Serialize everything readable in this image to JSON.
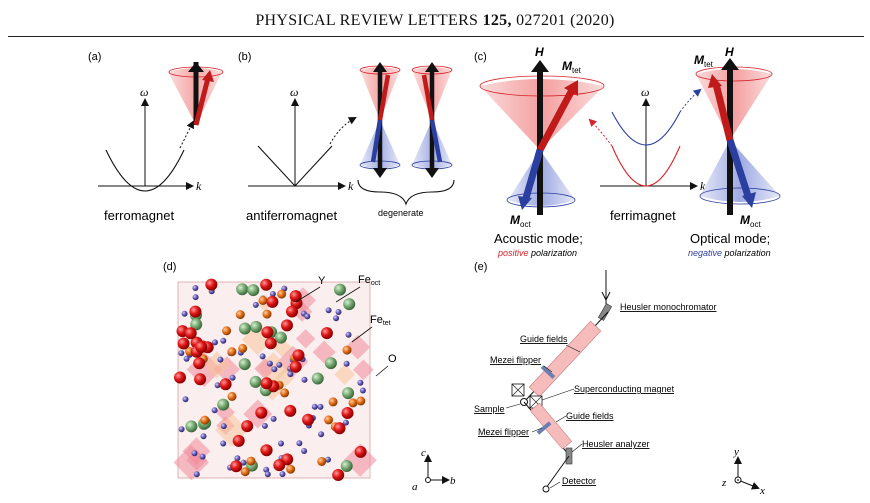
{
  "header": {
    "journal": "PHYSICAL REVIEW LETTERS",
    "volume": "125,",
    "article": "027201 (2020)"
  },
  "panels": {
    "a": {
      "label": "(a)",
      "omega": "ω",
      "k": "k",
      "caption": "ferromagnet"
    },
    "b": {
      "label": "(b)",
      "omega": "ω",
      "k": "k",
      "caption": "antiferromagnet",
      "brace": "degenerate"
    },
    "c": {
      "label": "(c)",
      "omega": "ω",
      "k": "k",
      "caption": "ferrimagnet",
      "H": "H",
      "M": "M",
      "tet": "tet",
      "oct": "oct",
      "acoustic": "Acoustic mode;",
      "optical": "Optical mode;",
      "positive": "positive",
      "negative": "negative",
      "polarization": "polarization"
    },
    "d": {
      "label": "(d)",
      "Y": "Y",
      "Fe": "Fe",
      "oct": "oct",
      "tet": "tet",
      "O": "O",
      "axis_c": "c",
      "axis_a": "a",
      "axis_b": "b"
    },
    "e": {
      "label": "(e)",
      "mono": "Heusler monochromator",
      "guide1": "Guide fields",
      "flipper1": "Mezei flipper",
      "magnet": "Superconducting magnet",
      "sample": "Sample",
      "guide2": "Guide fields",
      "flipper2": "Mezei flipper",
      "analyzer": "Heusler analyzer",
      "detector": "Detector",
      "axis_y": "y",
      "axis_z": "z",
      "axis_x": "x"
    }
  },
  "colors": {
    "red": "#d8232a",
    "blue": "#2b3fa0",
    "pink": "#f2a0a0",
    "green": "#7cae7a",
    "orange": "#e8731f",
    "purple": "#6a63b8"
  }
}
